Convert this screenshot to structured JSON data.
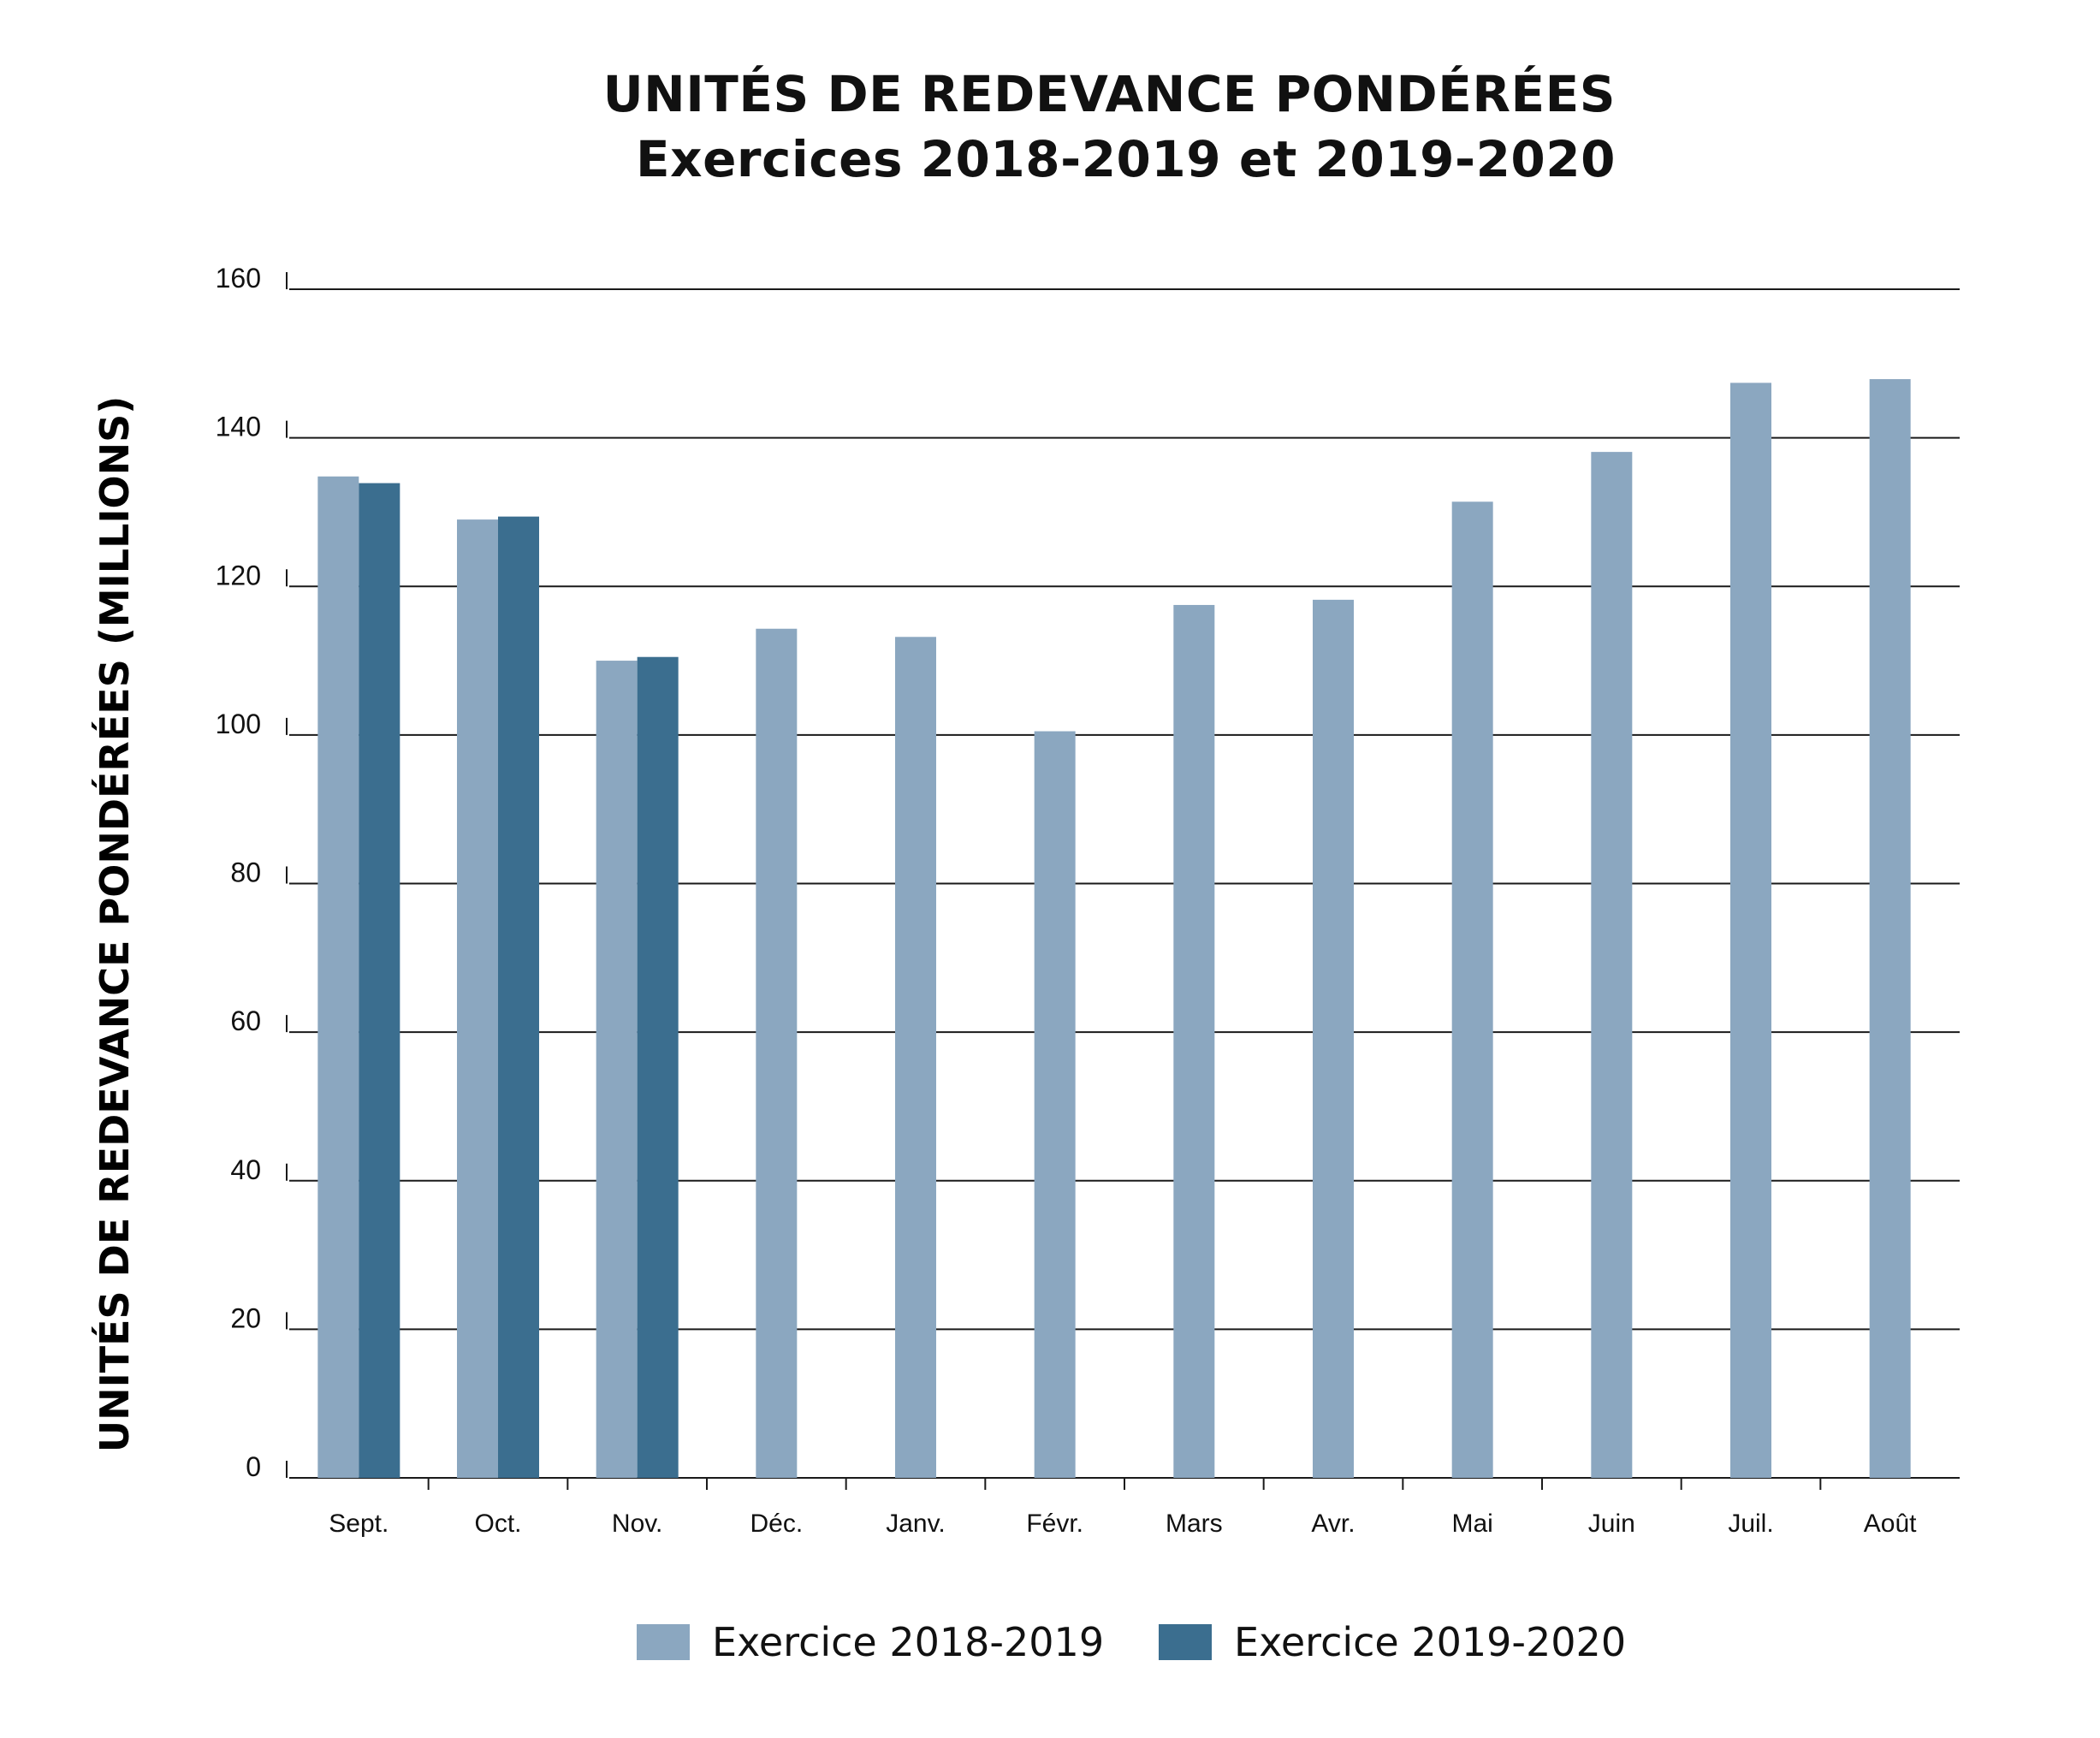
{
  "chart_data": {
    "type": "bar",
    "title": "UNITÉS DE REDEVANCE PONDÉRÉES",
    "subtitle": "Exercices 2018-2019 et 2019-2020",
    "xlabel": "",
    "ylabel": "UNITÉS DE REDEVANCE PONDÉRÉES (MILLIONS)",
    "ylim": [
      0,
      160
    ],
    "yticks": [
      0,
      20,
      40,
      60,
      80,
      100,
      120,
      140,
      160
    ],
    "grid": true,
    "legend_position": "bottom",
    "categories": [
      "Sept.",
      "Oct.",
      "Nov.",
      "Déc.",
      "Janv.",
      "Févr.",
      "Mars",
      "Avr.",
      "Mai",
      "Juin",
      "Juil.",
      "Août"
    ],
    "series": [
      {
        "name": "Exercice 2018-2019",
        "color": "#8ba7c0",
        "values": [
          134.8,
          129,
          110,
          114.3,
          113.2,
          100.5,
          117.5,
          118.2,
          131.4,
          138.1,
          147.4,
          147.9
        ]
      },
      {
        "name": "Exercice 2019-2020",
        "color": "#3b6e8f",
        "values": [
          133.9,
          129.4,
          110.5,
          null,
          null,
          null,
          null,
          null,
          null,
          null,
          null,
          null
        ]
      }
    ]
  }
}
